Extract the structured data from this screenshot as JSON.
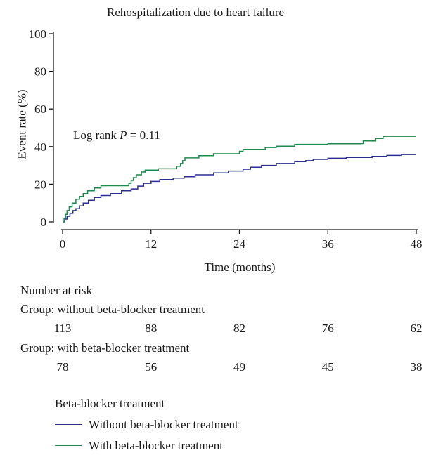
{
  "chart_data": {
    "type": "line",
    "title": "Rehospitalization due to heart failure",
    "xlabel": "Time (months)",
    "ylabel": "Event rate (%)",
    "xlim": [
      0,
      48
    ],
    "ylim": [
      0,
      100
    ],
    "xticks": [
      0,
      12,
      24,
      36,
      48
    ],
    "yticks": [
      0,
      20,
      40,
      60,
      80,
      100
    ],
    "annotation": {
      "prefix": "Log rank ",
      "italic": "P",
      "suffix": " = 0.11"
    },
    "series": [
      {
        "name": "Without beta-blocker treatment",
        "color": "#2b2f8f",
        "points": [
          [
            0,
            0
          ],
          [
            0.3,
            1.5
          ],
          [
            0.6,
            3
          ],
          [
            1.0,
            4.5
          ],
          [
            1.4,
            6
          ],
          [
            1.8,
            7
          ],
          [
            2.3,
            8.5
          ],
          [
            2.8,
            10
          ],
          [
            3.5,
            11.5
          ],
          [
            4.3,
            13
          ],
          [
            5.2,
            14
          ],
          [
            6.5,
            15
          ],
          [
            8.0,
            16.5
          ],
          [
            9.3,
            17.5
          ],
          [
            10.2,
            19
          ],
          [
            11.0,
            20.5
          ],
          [
            12.0,
            21.5
          ],
          [
            13.2,
            22.5
          ],
          [
            15.0,
            23.2
          ],
          [
            16.5,
            24
          ],
          [
            18.0,
            25
          ],
          [
            20.5,
            26
          ],
          [
            22.5,
            27
          ],
          [
            24.5,
            28
          ],
          [
            25.5,
            29
          ],
          [
            27.0,
            30
          ],
          [
            29.0,
            31
          ],
          [
            31.5,
            32
          ],
          [
            33.0,
            32.5
          ],
          [
            34.0,
            33.2
          ],
          [
            36.0,
            33.8
          ],
          [
            38.5,
            34.2
          ],
          [
            42.0,
            34.8
          ],
          [
            44.0,
            35.3
          ],
          [
            46.0,
            35.8
          ],
          [
            48.0,
            35.8
          ]
        ]
      },
      {
        "name": "With beta-blocker treatment",
        "color": "#1f8a4c",
        "points": [
          [
            0,
            0
          ],
          [
            0.2,
            2
          ],
          [
            0.4,
            4
          ],
          [
            0.6,
            6
          ],
          [
            0.9,
            8
          ],
          [
            1.3,
            10
          ],
          [
            1.8,
            12
          ],
          [
            2.3,
            13.5
          ],
          [
            2.8,
            15
          ],
          [
            3.4,
            16.5
          ],
          [
            4.3,
            18
          ],
          [
            5.2,
            19.2
          ],
          [
            9.0,
            20.5
          ],
          [
            9.3,
            22
          ],
          [
            9.6,
            23.5
          ],
          [
            10.0,
            25
          ],
          [
            10.7,
            26.5
          ],
          [
            11.2,
            27.5
          ],
          [
            13.0,
            28.2
          ],
          [
            15.5,
            29.5
          ],
          [
            16.0,
            31
          ],
          [
            16.3,
            32.5
          ],
          [
            16.6,
            34
          ],
          [
            18.5,
            35.2
          ],
          [
            20.5,
            36.2
          ],
          [
            24.0,
            37.5
          ],
          [
            24.5,
            38.5
          ],
          [
            27.5,
            39.5
          ],
          [
            29.0,
            40.2
          ],
          [
            31.5,
            41.2
          ],
          [
            36.0,
            41.5
          ],
          [
            40.5,
            41.6
          ],
          [
            40.8,
            43
          ],
          [
            42.5,
            44.3
          ],
          [
            43.5,
            45.5
          ],
          [
            48.0,
            45.5
          ]
        ]
      }
    ],
    "risk_table": {
      "title": "Number at risk",
      "times": [
        0,
        12,
        24,
        36,
        48
      ],
      "groups": [
        {
          "label": "Group: without beta-blocker treatment",
          "values": [
            113,
            88,
            82,
            76,
            62
          ]
        },
        {
          "label": "Group: with beta-blocker treatment",
          "values": [
            78,
            56,
            49,
            45,
            38
          ]
        }
      ]
    },
    "legend": {
      "title": "Beta-blocker treatment",
      "position": "bottom"
    },
    "grid": false
  }
}
